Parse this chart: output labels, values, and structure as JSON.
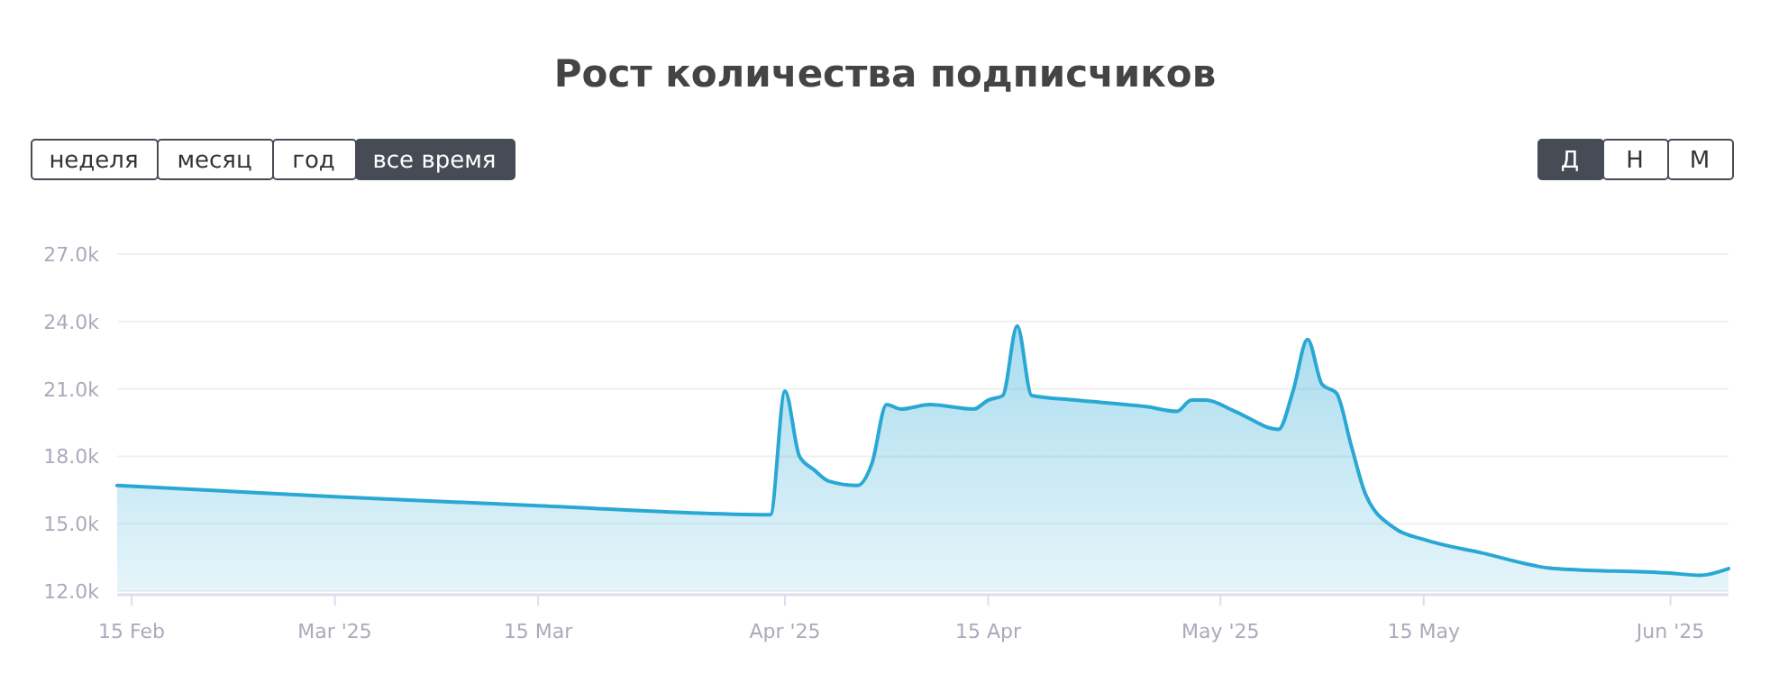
{
  "chart_data": {
    "type": "area",
    "title": "Рост количества подписчиков",
    "annotations": [
      "неделя",
      "месяц",
      "год",
      "все время",
      "Д",
      "Н",
      "М"
    ],
    "x": [
      "2025-02-14",
      "2025-02-20",
      "2025-03-01",
      "2025-03-15",
      "2025-03-31",
      "2025-04-01",
      "2025-04-02",
      "2025-04-03",
      "2025-04-04",
      "2025-04-06",
      "2025-04-07",
      "2025-04-08",
      "2025-04-09",
      "2025-04-11",
      "2025-04-14",
      "2025-04-15",
      "2025-04-16",
      "2025-04-17",
      "2025-04-18",
      "2025-04-21",
      "2025-04-26",
      "2025-04-28",
      "2025-04-29",
      "2025-04-30",
      "2025-05-02",
      "2025-05-05",
      "2025-05-06",
      "2025-05-07",
      "2025-05-08",
      "2025-05-09",
      "2025-05-10",
      "2025-05-11",
      "2025-05-13",
      "2025-05-15",
      "2025-05-19",
      "2025-05-24",
      "2025-06-01",
      "2025-06-03",
      "2025-06-05"
    ],
    "series": [
      {
        "color": "#2aa8d4",
        "values": [
          16700,
          16500,
          16200,
          15800,
          15400,
          20900,
          18000,
          17400,
          16900,
          16700,
          17700,
          20300,
          20100,
          20300,
          20100,
          20500,
          20700,
          23800,
          20700,
          20500,
          20200,
          20000,
          20500,
          20500,
          20000,
          19200,
          20900,
          23200,
          21200,
          20800,
          18500,
          16300,
          14800,
          14300,
          13700,
          13000,
          12800,
          12700,
          13000
        ]
      }
    ],
    "xlim": [
      "2025-02-14",
      "2025-06-05"
    ],
    "xticks": [
      {
        "value": "2025-02-15",
        "label": "15 Feb"
      },
      {
        "value": "2025-03-01",
        "label": "Mar '25"
      },
      {
        "value": "2025-03-15",
        "label": "15 Mar"
      },
      {
        "value": "2025-04-01",
        "label": "Apr '25"
      },
      {
        "value": "2025-04-15",
        "label": "15 Apr"
      },
      {
        "value": "2025-05-01",
        "label": "May '25"
      },
      {
        "value": "2025-05-15",
        "label": "15 May"
      },
      {
        "value": "2025-06-01",
        "label": "Jun '25"
      }
    ],
    "ylim": [
      12000,
      27000
    ],
    "yticks": [
      {
        "value": 12000,
        "label": "12.0k"
      },
      {
        "value": 15000,
        "label": "15.0k"
      },
      {
        "value": 18000,
        "label": "18.0k"
      },
      {
        "value": 21000,
        "label": "21.0k"
      },
      {
        "value": 24000,
        "label": "24.0k"
      },
      {
        "value": 27000,
        "label": "27.0k"
      }
    ],
    "grid": "y"
  }
}
